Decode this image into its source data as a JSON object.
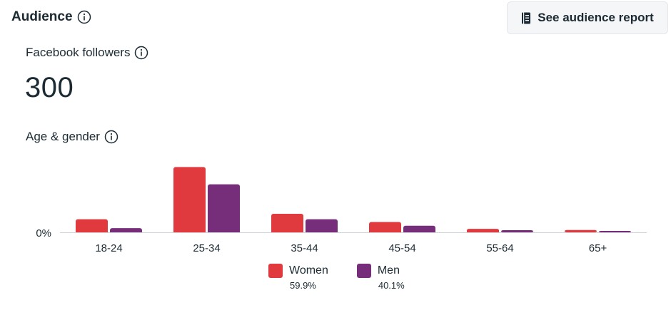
{
  "header": {
    "title": "Audience",
    "report_button_label": "See audience report"
  },
  "followers": {
    "label": "Facebook followers",
    "count": "300"
  },
  "age_gender": {
    "label": "Age & gender"
  },
  "icons": {
    "info": "info-icon",
    "report": "report-book-icon"
  },
  "colors": {
    "women": "#e0393e",
    "men": "#772e7a",
    "baseline": "#d0d3d8",
    "text": "#1c2b33"
  },
  "chart_data": {
    "type": "bar",
    "categories": [
      "18-24",
      "25-34",
      "35-44",
      "45-54",
      "55-64",
      "65+"
    ],
    "series": [
      {
        "name": "Women",
        "values": [
          5.6,
          27.9,
          7.9,
          4.4,
          1.5,
          1.0
        ]
      },
      {
        "name": "Men",
        "values": [
          1.8,
          20.5,
          5.6,
          2.8,
          0.9,
          0.6
        ]
      }
    ],
    "ylim": [
      0,
      28
    ],
    "y_tick_label": "0%",
    "legend": [
      {
        "name": "Women",
        "percent": "59.9%"
      },
      {
        "name": "Men",
        "percent": "40.1%"
      }
    ],
    "legend_position": "bottom"
  }
}
